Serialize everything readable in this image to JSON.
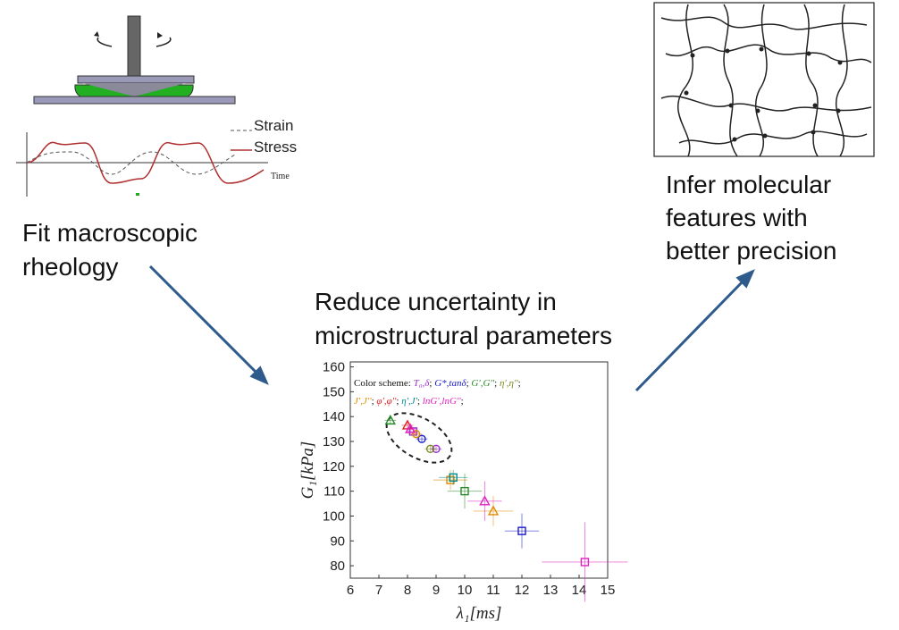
{
  "rheology": {
    "legend": [
      "Strain",
      "Stress"
    ],
    "time_label": "Time",
    "caption": [
      "Fit macroscopic",
      "rheology"
    ]
  },
  "middle": {
    "caption": [
      "Reduce uncertainty in",
      "microstructural parameters"
    ]
  },
  "network": {
    "caption": [
      "Infer molecular",
      "features with",
      "better precision"
    ]
  },
  "chart_data": {
    "type": "scatter",
    "xlabel": "λ₁[ms]",
    "ylabel": "G₁[kPa]",
    "legend_title": "Color scheme:",
    "legend_separator": "; ",
    "xlim": [
      6,
      15
    ],
    "ylim": [
      75,
      162
    ],
    "xticks": [
      6,
      7,
      8,
      9,
      10,
      11,
      12,
      13,
      14,
      15
    ],
    "yticks": [
      80,
      90,
      100,
      110,
      120,
      130,
      140,
      150,
      160
    ],
    "series": [
      {
        "name": "T₀,δ",
        "color": "#9b30d0",
        "markers": [
          "square",
          "circle"
        ],
        "x": [
          8.2,
          9.0
        ],
        "values": [
          134,
          127
        ],
        "xerr": [
          0.2,
          0.2
        ],
        "yerr": [
          1.5,
          1.5
        ]
      },
      {
        "name": "G*,tanδ",
        "color": "#1a1acc",
        "markers": [
          "circle",
          "square"
        ],
        "x": [
          8.5,
          12.0
        ],
        "values": [
          131,
          94
        ],
        "xerr": [
          0.2,
          0.6
        ],
        "yerr": [
          1.5,
          7
        ]
      },
      {
        "name": "G',G''",
        "color": "#2a8a2a",
        "markers": [
          "triangle",
          "square"
        ],
        "x": [
          7.4,
          10.0
        ],
        "values": [
          138.5,
          110
        ],
        "xerr": [
          0.2,
          0.6
        ],
        "yerr": [
          1.5,
          7
        ]
      },
      {
        "name": "η',η''",
        "color": "#7a8a20",
        "markers": [
          "circle"
        ],
        "x": [
          8.8
        ],
        "values": [
          127
        ],
        "xerr": [
          0.2
        ],
        "yerr": [
          1.5
        ]
      },
      {
        "name": "J',J''",
        "color": "#e08a00",
        "markers": [
          "circle",
          "square",
          "triangle"
        ],
        "x": [
          8.3,
          9.5,
          11.0
        ],
        "values": [
          133,
          114.5,
          102
        ],
        "xerr": [
          0.2,
          0.6,
          0.7
        ],
        "yerr": [
          1.5,
          4,
          6
        ]
      },
      {
        "name": "φ',φ''",
        "color": "#e02020",
        "markers": [
          "triangle"
        ],
        "x": [
          8.0
        ],
        "values": [
          136.5
        ],
        "xerr": [
          0.2
        ],
        "yerr": [
          1.5
        ]
      },
      {
        "name": "η',J'",
        "color": "#008b8b",
        "markers": [
          "square"
        ],
        "x": [
          9.6
        ],
        "values": [
          115.5
        ],
        "xerr": [
          0.5
        ],
        "yerr": [
          3
        ]
      },
      {
        "name": "lnG',lnG''",
        "color": "#e020c0",
        "markers": [
          "triangle",
          "triangle",
          "square"
        ],
        "x": [
          8.1,
          10.7,
          14.2
        ],
        "values": [
          135,
          106,
          81.5
        ],
        "xerr": [
          0.2,
          0.6,
          1.5
        ],
        "yerr": [
          1.5,
          8,
          16
        ]
      }
    ]
  }
}
